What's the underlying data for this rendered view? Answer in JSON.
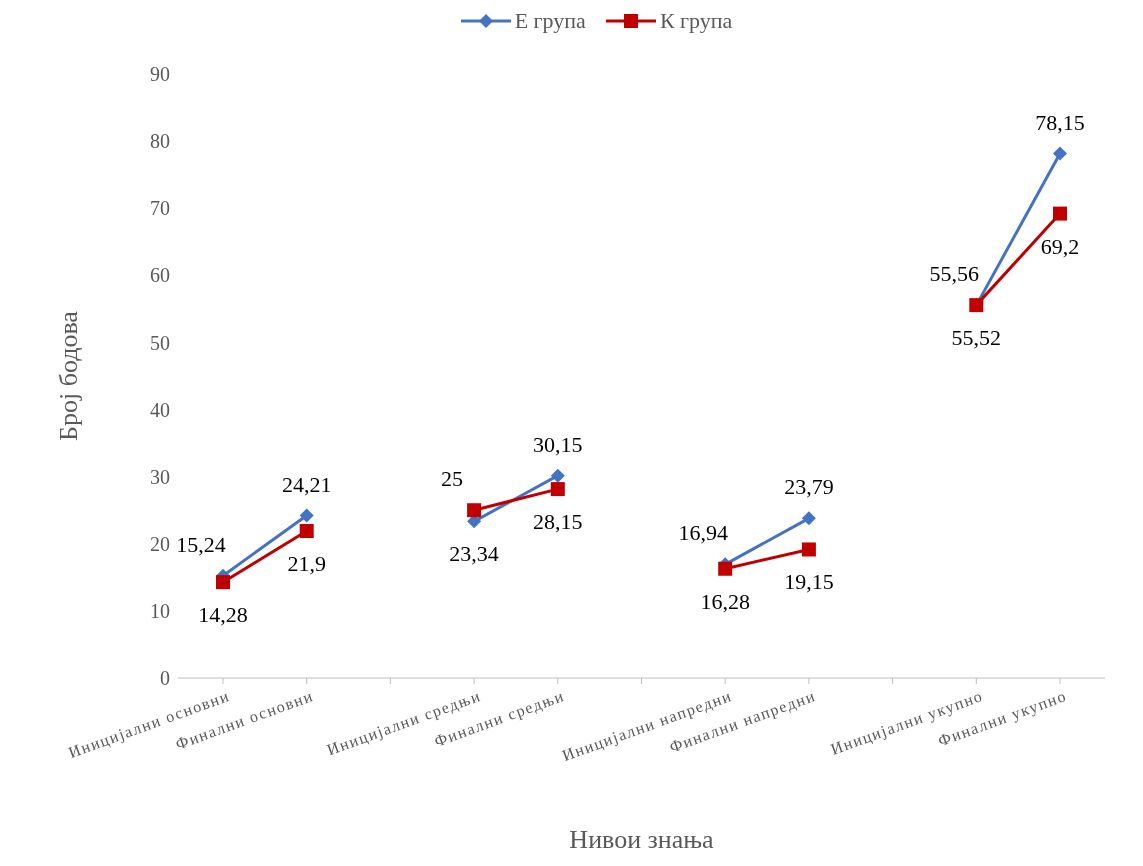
{
  "chart_data": {
    "type": "line",
    "xlabel": "Нивои знања",
    "ylabel": "Број бодова",
    "categories": [
      "Иницијални основни",
      "Финални основни",
      null,
      "Иницијални средњи",
      "Финални средњи",
      null,
      "Иницијални напредни",
      "Финални напредни",
      null,
      "Иницијални укупно",
      "Финални укупно"
    ],
    "series": [
      {
        "name": "Е група",
        "color": "#4472c4",
        "marker": "diamond",
        "values": [
          15.24,
          24.21,
          null,
          23.34,
          30.15,
          null,
          16.94,
          23.79,
          null,
          55.52,
          78.15
        ],
        "value_labels": [
          "15,24",
          "24,21",
          null,
          "23,34",
          "30,15",
          null,
          "16,94",
          "23,79",
          null,
          "55,52",
          "78,15"
        ]
      },
      {
        "name": "К група",
        "color": "#c00000",
        "marker": "square",
        "values": [
          14.28,
          21.9,
          null,
          25,
          28.15,
          null,
          16.28,
          19.15,
          null,
          55.56,
          69.2
        ],
        "value_labels": [
          "14,28",
          "21,9",
          null,
          "25",
          "28,15",
          null,
          "16,28",
          "19,15",
          null,
          "55,56",
          "69,2"
        ]
      }
    ],
    "ylim": [
      0,
      90
    ],
    "yticks": [
      0,
      10,
      20,
      30,
      40,
      50,
      60,
      70,
      80,
      90
    ],
    "grid": false,
    "legend": "top"
  }
}
